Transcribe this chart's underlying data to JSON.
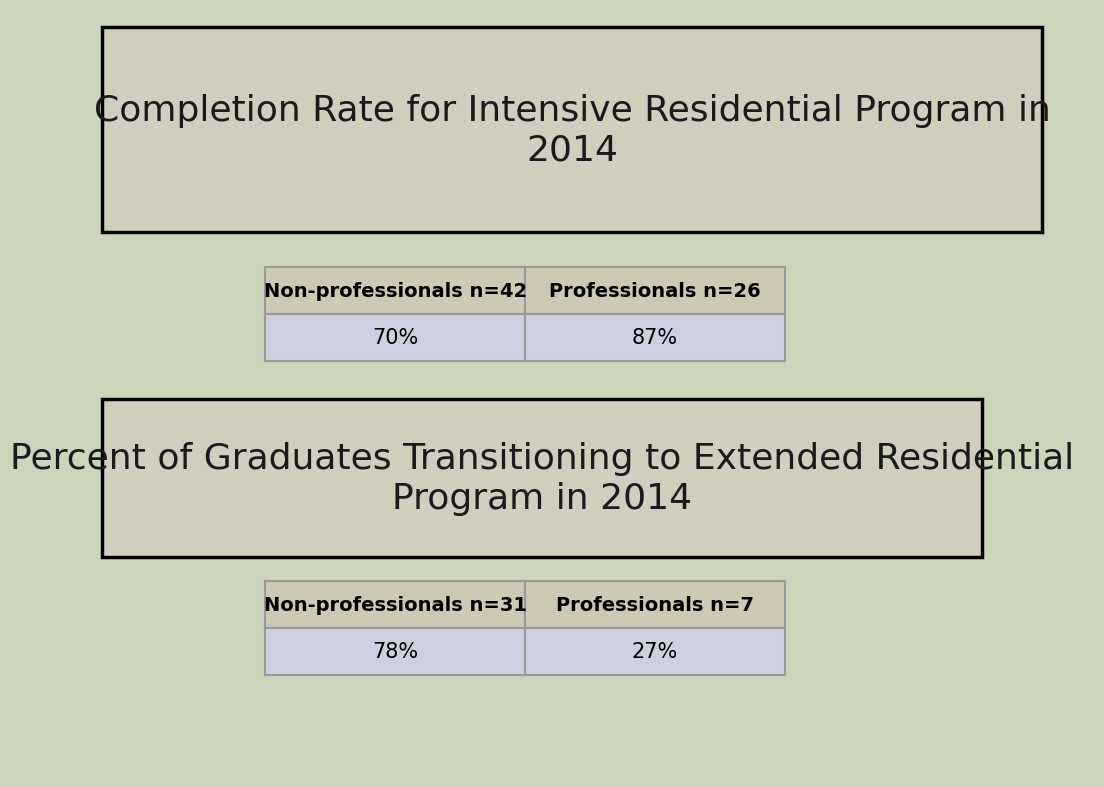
{
  "background_color": "#ccd4bb",
  "title1": "Completion Rate for Intensive Residential Program in\n2014",
  "title1_box_color": "#d0cebc",
  "title2": "Percent of Graduates Transitioning to Extended Residential\nProgram in 2014",
  "title2_box_color": "#d0cebc",
  "table1_headers": [
    "Non-professionals n=42",
    "Professionals n=26"
  ],
  "table1_values": [
    "70%",
    "87%"
  ],
  "table2_headers": [
    "Non-professionals n=31",
    "Professionals n=7"
  ],
  "table2_values": [
    "78%",
    "27%"
  ],
  "header_bg": "#cdc9b4",
  "value_bg": "#cdd0e0",
  "table_border_color": "#999999",
  "title_text_color": "#1a1a1a",
  "font_size_title": 26,
  "font_size_header": 14,
  "font_size_value": 15
}
